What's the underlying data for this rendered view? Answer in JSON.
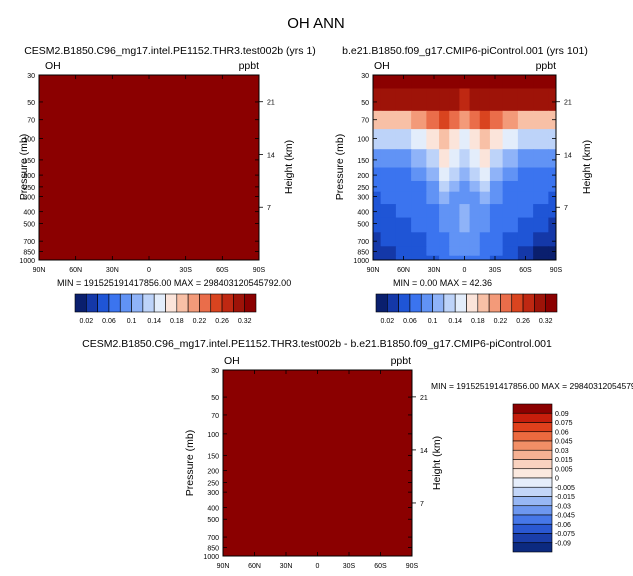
{
  "figure": {
    "title": "OH ANN",
    "panels": [
      {
        "id": "test",
        "title": "CESM2.B1850.C96_mg17.intel.PE1152.THR3.test002b (yrs 1)",
        "variable": "OH",
        "units": "ppbt",
        "ylabel": "Pressure (mb)",
        "y2label": "Height (km)",
        "minmax": "MIN = 191525191417856.00   MAX = 298403120545792.00",
        "fill_color": "#8b0000"
      },
      {
        "id": "control",
        "title": "b.e21.B1850.f09_g17.CMIP6-piControl.001 (yrs 101)",
        "variable": "OH",
        "units": "ppbt",
        "ylabel": "Pressure (mb)",
        "y2label": "Height (km)",
        "minmax": "MIN =   0.00   MAX =  42.36"
      },
      {
        "id": "diff",
        "title": "CESM2.B1850.C96_mg17.intel.PE1152.THR3.test002b - b.e21.B1850.f09_g17.CMIP6-piControl.001",
        "variable": "OH",
        "units": "ppbt",
        "ylabel": "Pressure (mb)",
        "y2label": "Height (km)",
        "minmax": "MIN = 191525191417856.00   MAX = 298403120545792.00",
        "fill_color": "#8b0000"
      }
    ],
    "colorbar_main": {
      "labels": [
        "0.02",
        "0.06",
        "0.1",
        "0.14",
        "0.18",
        "0.22",
        "0.26",
        "0.32"
      ],
      "colors": [
        "#0a1f6e",
        "#1438a8",
        "#1f55d6",
        "#3b74ef",
        "#6193f5",
        "#8fb3f8",
        "#bdd3f9",
        "#e3edfb",
        "#fbe4da",
        "#f8c0a6",
        "#f39a79",
        "#ea6d4a",
        "#d9441f",
        "#bf2812",
        "#9e1308",
        "#8b0000"
      ]
    },
    "colorbar_diff": {
      "labels": [
        "0.09",
        "0.075",
        "0.06",
        "0.045",
        "0.03",
        "0.015",
        "0.005",
        "0",
        "-0.005",
        "-0.015",
        "-0.03",
        "-0.045",
        "-0.06",
        "-0.075",
        "-0.09"
      ],
      "colors": [
        "#8b0000",
        "#c61e0c",
        "#e0401c",
        "#ec6a3f",
        "#f28f66",
        "#f6b193",
        "#f9d2bf",
        "#fbe9df",
        "#e6eefb",
        "#c3d6f8",
        "#97b7f4",
        "#6d97ef",
        "#4677e8",
        "#2a58d2",
        "#1a3eaa",
        "#0c2a80"
      ]
    }
  },
  "chart_data": [
    {
      "type": "heatmap",
      "title": "CESM2.B1850.C96_mg17.intel.PE1152.THR3.test002b (yrs 1)",
      "variable": "OH",
      "units": "ppbt",
      "ylabel": "Pressure (mb)",
      "y2label": "Height (km)",
      "x_ticks": [
        "90N",
        "60N",
        "30N",
        "0",
        "30S",
        "60S",
        "90S"
      ],
      "y_ticks": [
        30,
        50,
        70,
        100,
        150,
        200,
        250,
        300,
        400,
        500,
        700,
        850,
        1000
      ],
      "y2_ticks": [
        21,
        14,
        7
      ],
      "ylim": [
        30,
        1000
      ],
      "yscale": "log",
      "min": 191525191417856.0,
      "max": 298403120545792.0,
      "fill": "saturated above top of colorbar"
    },
    {
      "type": "heatmap",
      "title": "b.e21.B1850.f09_g17.CMIP6-piControl.001 (yrs 101)",
      "variable": "OH",
      "units": "ppbt",
      "ylabel": "Pressure (mb)",
      "y2label": "Height (km)",
      "x_ticks": [
        "90N",
        "60N",
        "30N",
        "0",
        "30S",
        "60S",
        "90S"
      ],
      "y_ticks": [
        30,
        50,
        70,
        100,
        150,
        200,
        250,
        300,
        400,
        500,
        700,
        850,
        1000
      ],
      "y2_ticks": [
        21,
        14,
        7
      ],
      "ylim": [
        30,
        1000
      ],
      "yscale": "log",
      "min": 0.0,
      "max": 42.36,
      "x_lat": [
        90,
        75,
        60,
        45,
        30,
        20,
        10,
        0,
        -10,
        -20,
        -30,
        -45,
        -60,
        -75,
        -90
      ],
      "y_pressure": [
        30,
        50,
        70,
        100,
        150,
        200,
        250,
        300,
        400,
        500,
        700,
        850,
        1000
      ],
      "z_level_index": [
        [
          15,
          15,
          15,
          15,
          15,
          15,
          15,
          15,
          15,
          15,
          15,
          15,
          15,
          15,
          15
        ],
        [
          14,
          14,
          14,
          14,
          14,
          14,
          14,
          13,
          14,
          14,
          14,
          14,
          14,
          14,
          14
        ],
        [
          9,
          9,
          9,
          10,
          11,
          12,
          11,
          10,
          11,
          12,
          11,
          10,
          9,
          9,
          9
        ],
        [
          6,
          6,
          6,
          7,
          8,
          9,
          8,
          7,
          8,
          9,
          8,
          7,
          6,
          6,
          6
        ],
        [
          4,
          4,
          4,
          5,
          6,
          8,
          7,
          6,
          7,
          8,
          6,
          5,
          4,
          4,
          4
        ],
        [
          3,
          3,
          3,
          4,
          5,
          7,
          6,
          5,
          6,
          7,
          5,
          4,
          3,
          3,
          3
        ],
        [
          3,
          3,
          3,
          3,
          4,
          6,
          5,
          4,
          5,
          6,
          4,
          3,
          3,
          3,
          3
        ],
        [
          2,
          3,
          3,
          3,
          4,
          5,
          4,
          4,
          4,
          5,
          4,
          3,
          3,
          3,
          2
        ],
        [
          2,
          2,
          3,
          3,
          3,
          4,
          4,
          5,
          4,
          4,
          3,
          3,
          3,
          2,
          2
        ],
        [
          2,
          2,
          2,
          3,
          3,
          4,
          4,
          5,
          4,
          4,
          3,
          3,
          2,
          2,
          1
        ],
        [
          1,
          2,
          2,
          2,
          3,
          3,
          4,
          4,
          4,
          3,
          3,
          2,
          2,
          1,
          1
        ],
        [
          1,
          1,
          2,
          2,
          3,
          3,
          4,
          4,
          4,
          3,
          3,
          2,
          1,
          0,
          0
        ],
        [
          1,
          1,
          2,
          2,
          2,
          3,
          3,
          3,
          3,
          3,
          2,
          2,
          1,
          0,
          0
        ]
      ]
    },
    {
      "type": "heatmap",
      "title": "CESM2.B1850.C96_mg17.intel.PE1152.THR3.test002b - b.e21.B1850.f09_g17.CMIP6-piControl.001",
      "variable": "OH",
      "units": "ppbt",
      "ylabel": "Pressure (mb)",
      "y2label": "Height (km)",
      "x_ticks": [
        "90N",
        "60N",
        "30N",
        "0",
        "30S",
        "60S",
        "90S"
      ],
      "y_ticks": [
        30,
        50,
        70,
        100,
        150,
        200,
        250,
        300,
        400,
        500,
        700,
        850,
        1000
      ],
      "y2_ticks": [
        21,
        14,
        7
      ],
      "ylim": [
        30,
        1000
      ],
      "yscale": "log",
      "min": 191525191417856.0,
      "max": 298403120545792.0,
      "fill": "saturated above top of colorbar"
    }
  ]
}
